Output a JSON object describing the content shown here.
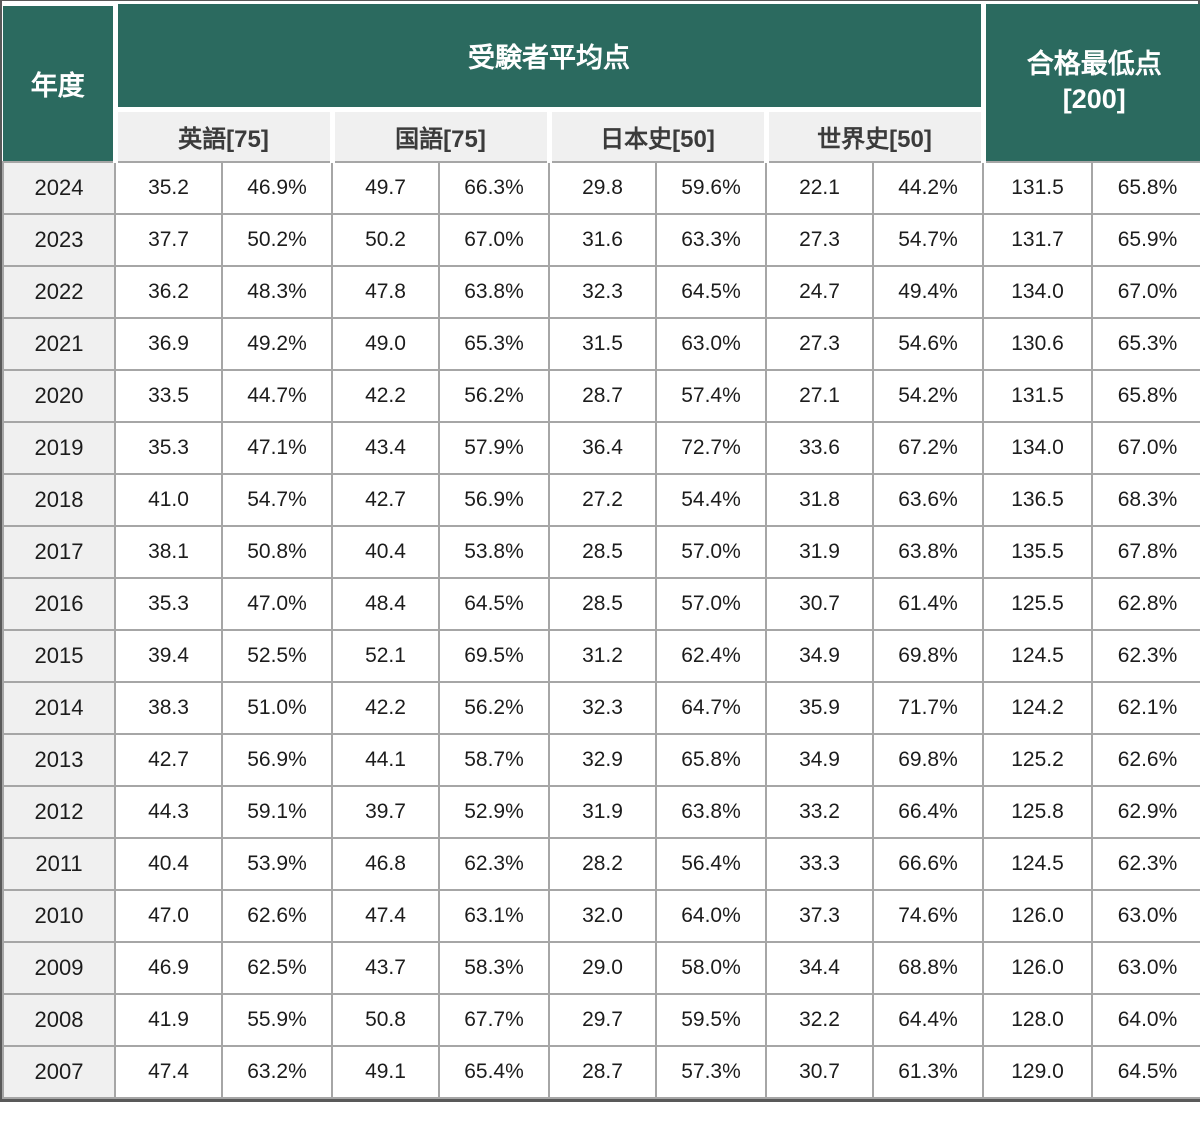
{
  "table": {
    "header": {
      "year_label": "年度",
      "average_group_label": "受験者平均点",
      "passing_min_label": "合格最低点\n[200]",
      "subjects": [
        "英語[75]",
        "国語[75]",
        "日本史[50]",
        "世界史[50]"
      ]
    },
    "rows": [
      {
        "year": "2024",
        "cells": [
          "35.2",
          "46.9%",
          "49.7",
          "66.3%",
          "29.8",
          "59.6%",
          "22.1",
          "44.2%",
          "131.5",
          "65.8%"
        ]
      },
      {
        "year": "2023",
        "cells": [
          "37.7",
          "50.2%",
          "50.2",
          "67.0%",
          "31.6",
          "63.3%",
          "27.3",
          "54.7%",
          "131.7",
          "65.9%"
        ]
      },
      {
        "year": "2022",
        "cells": [
          "36.2",
          "48.3%",
          "47.8",
          "63.8%",
          "32.3",
          "64.5%",
          "24.7",
          "49.4%",
          "134.0",
          "67.0%"
        ]
      },
      {
        "year": "2021",
        "cells": [
          "36.9",
          "49.2%",
          "49.0",
          "65.3%",
          "31.5",
          "63.0%",
          "27.3",
          "54.6%",
          "130.6",
          "65.3%"
        ]
      },
      {
        "year": "2020",
        "cells": [
          "33.5",
          "44.7%",
          "42.2",
          "56.2%",
          "28.7",
          "57.4%",
          "27.1",
          "54.2%",
          "131.5",
          "65.8%"
        ]
      },
      {
        "year": "2019",
        "cells": [
          "35.3",
          "47.1%",
          "43.4",
          "57.9%",
          "36.4",
          "72.7%",
          "33.6",
          "67.2%",
          "134.0",
          "67.0%"
        ]
      },
      {
        "year": "2018",
        "cells": [
          "41.0",
          "54.7%",
          "42.7",
          "56.9%",
          "27.2",
          "54.4%",
          "31.8",
          "63.6%",
          "136.5",
          "68.3%"
        ]
      },
      {
        "year": "2017",
        "cells": [
          "38.1",
          "50.8%",
          "40.4",
          "53.8%",
          "28.5",
          "57.0%",
          "31.9",
          "63.8%",
          "135.5",
          "67.8%"
        ]
      },
      {
        "year": "2016",
        "cells": [
          "35.3",
          "47.0%",
          "48.4",
          "64.5%",
          "28.5",
          "57.0%",
          "30.7",
          "61.4%",
          "125.5",
          "62.8%"
        ]
      },
      {
        "year": "2015",
        "cells": [
          "39.4",
          "52.5%",
          "52.1",
          "69.5%",
          "31.2",
          "62.4%",
          "34.9",
          "69.8%",
          "124.5",
          "62.3%"
        ]
      },
      {
        "year": "2014",
        "cells": [
          "38.3",
          "51.0%",
          "42.2",
          "56.2%",
          "32.3",
          "64.7%",
          "35.9",
          "71.7%",
          "124.2",
          "62.1%"
        ]
      },
      {
        "year": "2013",
        "cells": [
          "42.7",
          "56.9%",
          "44.1",
          "58.7%",
          "32.9",
          "65.8%",
          "34.9",
          "69.8%",
          "125.2",
          "62.6%"
        ]
      },
      {
        "year": "2012",
        "cells": [
          "44.3",
          "59.1%",
          "39.7",
          "52.9%",
          "31.9",
          "63.8%",
          "33.2",
          "66.4%",
          "125.8",
          "62.9%"
        ]
      },
      {
        "year": "2011",
        "cells": [
          "40.4",
          "53.9%",
          "46.8",
          "62.3%",
          "28.2",
          "56.4%",
          "33.3",
          "66.6%",
          "124.5",
          "62.3%"
        ]
      },
      {
        "year": "2010",
        "cells": [
          "47.0",
          "62.6%",
          "47.4",
          "63.1%",
          "32.0",
          "64.0%",
          "37.3",
          "74.6%",
          "126.0",
          "63.0%"
        ]
      },
      {
        "year": "2009",
        "cells": [
          "46.9",
          "62.5%",
          "43.7",
          "58.3%",
          "29.0",
          "58.0%",
          "34.4",
          "68.8%",
          "126.0",
          "63.0%"
        ]
      },
      {
        "year": "2008",
        "cells": [
          "41.9",
          "55.9%",
          "50.8",
          "67.7%",
          "29.7",
          "59.5%",
          "32.2",
          "64.4%",
          "128.0",
          "64.0%"
        ]
      },
      {
        "year": "2007",
        "cells": [
          "47.4",
          "63.2%",
          "49.1",
          "65.4%",
          "28.7",
          "57.3%",
          "30.7",
          "61.3%",
          "129.0",
          "64.5%"
        ]
      }
    ]
  },
  "colors": {
    "header_teal": "#2B6A5F",
    "header_text": "#FFFFFF",
    "subheader_bg": "#F0F0F0",
    "year_column_bg": "#F0F0F0",
    "grid_border": "#A6A6A6",
    "data_text": "#1C1C1C"
  }
}
